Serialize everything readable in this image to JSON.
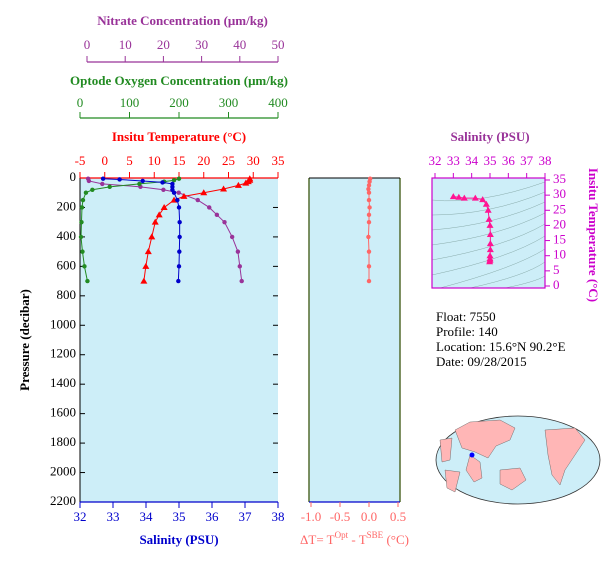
{
  "chart_data": [
    {
      "type": "profile",
      "ylabel": "Pressure (decibar)",
      "ylim": [
        0,
        2200
      ],
      "yticks": [
        0,
        200,
        400,
        600,
        800,
        1000,
        1200,
        1400,
        1600,
        1800,
        2000,
        2200
      ],
      "axes": [
        {
          "label": "Nitrate Concentration (μm/kg)",
          "xlim": [
            0,
            50
          ],
          "xticks": [
            0,
            10,
            20,
            30,
            40,
            50
          ],
          "color": "#993399",
          "marker": "circle",
          "pressure": [
            5,
            20,
            40,
            60,
            80,
            100,
            150,
            200,
            250,
            300,
            400,
            500,
            600,
            700
          ],
          "values": [
            0.3,
            0.5,
            4,
            14,
            20,
            24,
            29,
            32,
            34,
            36,
            38,
            39.5,
            40,
            40.5
          ]
        },
        {
          "label": "Optode Oxygen Concentration (μm/kg)",
          "xlim": [
            0,
            400
          ],
          "xticks": [
            0,
            100,
            200,
            300,
            400
          ],
          "color": "#228b22",
          "marker": "circle",
          "pressure": [
            5,
            15,
            25,
            40,
            60,
            80,
            100,
            150,
            200,
            300,
            400,
            500,
            600,
            700
          ],
          "values": [
            200,
            190,
            170,
            120,
            60,
            25,
            12,
            6,
            4,
            3,
            2,
            5,
            9,
            15
          ]
        },
        {
          "label": "Insitu Temperature (°C)",
          "xlim": [
            -5,
            35
          ],
          "xticks": [
            -5,
            0,
            5,
            10,
            15,
            20,
            25,
            30,
            35
          ],
          "color": "#ff0000",
          "marker": "triangle",
          "pressure": [
            5,
            15,
            25,
            35,
            50,
            75,
            100,
            125,
            150,
            200,
            250,
            300,
            400,
            500,
            600,
            700
          ],
          "values": [
            29.3,
            29.3,
            29.0,
            28.5,
            27,
            24,
            20,
            16,
            14,
            12,
            11,
            10.2,
            9.5,
            8.8,
            8.3,
            7.9
          ]
        },
        {
          "label": "Salinity (PSU)",
          "xlim": [
            32,
            38
          ],
          "xticks": [
            32,
            33,
            34,
            35,
            36,
            37,
            38
          ],
          "color": "#0000cc",
          "marker": "circle",
          "pressure": [
            5,
            10,
            20,
            30,
            40,
            60,
            80,
            100,
            150,
            200,
            300,
            400,
            500,
            600,
            700
          ],
          "values": [
            32.7,
            33.2,
            33.9,
            34.5,
            34.8,
            34.8,
            34.8,
            34.85,
            34.95,
            35.0,
            35.02,
            35.02,
            35.01,
            35.0,
            34.98
          ]
        }
      ]
    },
    {
      "type": "delta",
      "label_parts": [
        "ΔT= T",
        "Opt",
        " - T",
        "SBE",
        " (°C)"
      ],
      "color": "#ff6666",
      "xlim": [
        -1.0,
        0.5
      ],
      "xticks": [
        {
          "value": -1.0,
          "label": "-1.0"
        },
        {
          "value": -0.5,
          "label": "-0.5"
        },
        {
          "value": 0,
          "label": "0.0"
        },
        {
          "value": 0.5,
          "label": "0.5"
        }
      ],
      "ylim": [
        0,
        2200
      ],
      "pressure": [
        5,
        25,
        50,
        75,
        100,
        150,
        200,
        250,
        300,
        400,
        500,
        600,
        700
      ],
      "values": [
        0.02,
        0.01,
        0.0,
        -0.01,
        0.0,
        0.0,
        0.01,
        0.0,
        0.0,
        -0.01,
        0.0,
        0.0,
        0.0
      ]
    },
    {
      "type": "scatter",
      "title": "Salinity (PSU)",
      "ylabel": "Insitu Temperature (°C)",
      "color": "#ff1493",
      "xlim": [
        32,
        38
      ],
      "xticks": [
        32,
        33,
        34,
        35,
        36,
        37,
        38
      ],
      "ylim": [
        0,
        35
      ],
      "yticks": [
        0,
        5,
        10,
        15,
        20,
        25,
        30,
        35
      ],
      "x": [
        33.0,
        33.3,
        33.6,
        34.2,
        34.6,
        34.8,
        34.9,
        34.95,
        35.0,
        35.02,
        35.02,
        35.02,
        35.0,
        35.0,
        35.0,
        34.98
      ],
      "values": [
        29.5,
        29.3,
        29.0,
        29.0,
        28.5,
        27,
        25,
        22,
        20,
        17,
        14,
        12,
        10,
        9,
        8.5,
        8
      ]
    }
  ],
  "info": [
    "Float:  7550",
    "Profile:  140",
    "Location:  15.6°N  90.2°E",
    "Date:  09/28/2015"
  ]
}
